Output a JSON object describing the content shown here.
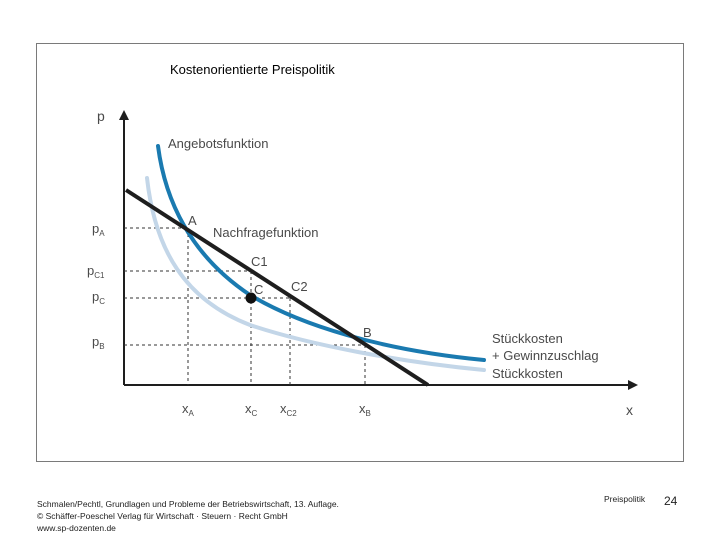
{
  "slide": {
    "title": "Kostenorientierte Preispolitik",
    "section_label": "Preispolitik",
    "page_number": "24",
    "footer": [
      "Schmalen/Pechtl, Grundlagen und Probleme der Betriebswirtschaft, 13. Auflage.",
      "© Schäffer-Poeschel Verlag für Wirtschaft · Steuern · Recht GmbH",
      "www.sp-dozenten.de"
    ]
  },
  "diagram": {
    "axis_y": "p",
    "axis_x": "x",
    "y_ticks": [
      {
        "base": "p",
        "sub": "A"
      },
      {
        "base": "p",
        "sub": "C1"
      },
      {
        "base": "p",
        "sub": "C"
      },
      {
        "base": "p",
        "sub": "B"
      }
    ],
    "x_ticks": [
      {
        "base": "x",
        "sub": "A"
      },
      {
        "base": "x",
        "sub": "C"
      },
      {
        "base": "x",
        "sub": "C2"
      },
      {
        "base": "x",
        "sub": "B"
      }
    ],
    "points": {
      "A": "A",
      "C1": "C1",
      "C": "C",
      "C2": "C2",
      "B": "B"
    },
    "curves": {
      "supply": "Angebotsfunktion",
      "demand": "Nachfragefunktion",
      "cost_markup_1": "Stückkosten",
      "cost_markup_2": "+ Gewinnzuschlag",
      "unit_cost": "Stückkosten"
    },
    "colors": {
      "supply_curve": "#1a7ab0",
      "demand_curve": "#1e1e1e",
      "unit_cost_curve": "#c3d6e8",
      "axis": "#1e1e1e",
      "guide": "#333333"
    }
  }
}
